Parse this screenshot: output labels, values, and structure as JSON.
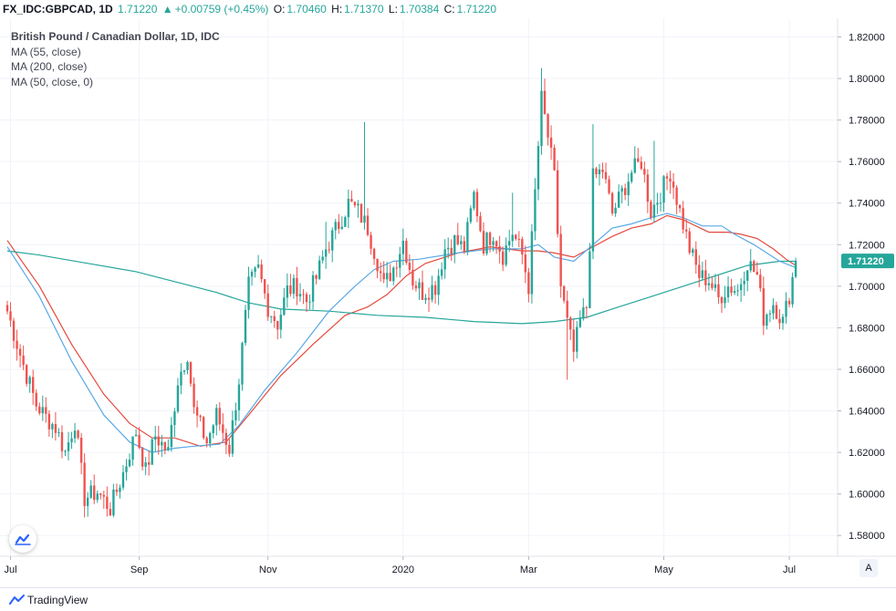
{
  "header": {
    "symbol": "FX_IDC:GBPCAD, 1D",
    "last": "1.71220",
    "change": "+0.00759 (+0.45%)",
    "open_label": "O:",
    "open": "1.70460",
    "high_label": "H:",
    "high": "1.71370",
    "low_label": "L:",
    "low": "1.70384",
    "close_label": "C:",
    "close": "1.71220"
  },
  "legend": {
    "title": "British Pound / Canadian Dollar, 1D, IDC",
    "ma1": "MA (55, close)",
    "ma2": "MA (200, close)",
    "ma3": "MA (50, close, 0)"
  },
  "price_tag": "1.71220",
  "footer": {
    "brand": "TradingView",
    "corner_button": "A"
  },
  "colors": {
    "up": "#26a69a",
    "down": "#ef5350",
    "ma55": "#e5493d",
    "ma200": "#26a69a",
    "ma50": "#5aa9e6",
    "grid": "#f0f3fa",
    "axis_text": "#131722",
    "price_tag_bg": "#26a69a"
  },
  "chart_data": {
    "type": "candlestick",
    "title": "British Pound / Canadian Dollar, 1D, IDC",
    "ylim": [
      1.57,
      1.829
    ],
    "y_ticks": [
      "1.82000",
      "1.80000",
      "1.78000",
      "1.76000",
      "1.74000",
      "1.72000",
      "1.70000",
      "1.68000",
      "1.66000",
      "1.64000",
      "1.62000",
      "1.60000",
      "1.58000"
    ],
    "x_labels": [
      {
        "label": "Jul",
        "i": 1
      },
      {
        "label": "Sep",
        "i": 41
      },
      {
        "label": "Nov",
        "i": 81
      },
      {
        "label": "2020",
        "i": 123
      },
      {
        "label": "Mar",
        "i": 162
      },
      {
        "label": "May",
        "i": 204
      },
      {
        "label": "Jul",
        "i": 243
      }
    ],
    "bars": 246,
    "anchors": [
      [
        0,
        1.688
      ],
      [
        5,
        1.662
      ],
      [
        9,
        1.643
      ],
      [
        12,
        1.637
      ],
      [
        15,
        1.632
      ],
      [
        18,
        1.62
      ],
      [
        21,
        1.635
      ],
      [
        24,
        1.598
      ],
      [
        28,
        1.601
      ],
      [
        32,
        1.593
      ],
      [
        36,
        1.61
      ],
      [
        40,
        1.63
      ],
      [
        43,
        1.611
      ],
      [
        46,
        1.628
      ],
      [
        50,
        1.62
      ],
      [
        53,
        1.655
      ],
      [
        56,
        1.668
      ],
      [
        58,
        1.64
      ],
      [
        62,
        1.625
      ],
      [
        65,
        1.638
      ],
      [
        69,
        1.622
      ],
      [
        72,
        1.655
      ],
      [
        75,
        1.7
      ],
      [
        78,
        1.708
      ],
      [
        81,
        1.69
      ],
      [
        84,
        1.682
      ],
      [
        87,
        1.698
      ],
      [
        90,
        1.7
      ],
      [
        93,
        1.693
      ],
      [
        96,
        1.704
      ],
      [
        99,
        1.718
      ],
      [
        103,
        1.73
      ],
      [
        106,
        1.74
      ],
      [
        109,
        1.736
      ],
      [
        112,
        1.728
      ],
      [
        115,
        1.712
      ],
      [
        117,
        1.7
      ],
      [
        120,
        1.709
      ],
      [
        123,
        1.722
      ],
      [
        126,
        1.703
      ],
      [
        129,
        1.697
      ],
      [
        133,
        1.7
      ],
      [
        136,
        1.718
      ],
      [
        139,
        1.722
      ],
      [
        142,
        1.718
      ],
      [
        145,
        1.744
      ],
      [
        148,
        1.72
      ],
      [
        151,
        1.726
      ],
      [
        154,
        1.715
      ],
      [
        157,
        1.726
      ],
      [
        160,
        1.715
      ],
      [
        162,
        1.7
      ],
      [
        164,
        1.745
      ],
      [
        166,
        1.79
      ],
      [
        168,
        1.772
      ],
      [
        170,
        1.752
      ],
      [
        172,
        1.7
      ],
      [
        174,
        1.682
      ],
      [
        176,
        1.668
      ],
      [
        178,
        1.683
      ],
      [
        180,
        1.69
      ],
      [
        182,
        1.752
      ],
      [
        185,
        1.756
      ],
      [
        188,
        1.735
      ],
      [
        191,
        1.745
      ],
      [
        194,
        1.755
      ],
      [
        197,
        1.76
      ],
      [
        200,
        1.736
      ],
      [
        203,
        1.745
      ],
      [
        206,
        1.755
      ],
      [
        209,
        1.736
      ],
      [
        212,
        1.718
      ],
      [
        215,
        1.705
      ],
      [
        218,
        1.703
      ],
      [
        221,
        1.694
      ],
      [
        224,
        1.7
      ],
      [
        227,
        1.698
      ],
      [
        230,
        1.712
      ],
      [
        233,
        1.705
      ],
      [
        235,
        1.685
      ],
      [
        238,
        1.692
      ],
      [
        241,
        1.683
      ],
      [
        243,
        1.696
      ],
      [
        245,
        1.712
      ]
    ],
    "last": {
      "open": 1.7046,
      "high": 1.7137,
      "low": 1.70384,
      "close": 1.7122
    },
    "spikes": [
      [
        111,
        1.779
      ],
      [
        166,
        1.805
      ],
      [
        174,
        1.655
      ],
      [
        182,
        1.778
      ],
      [
        201,
        1.77
      ],
      [
        157,
        1.745
      ],
      [
        99,
        1.731
      ]
    ],
    "series": [
      {
        "name": "MA (55, close)",
        "color": "#e5493d",
        "points": [
          [
            0,
            1.722
          ],
          [
            10,
            1.7
          ],
          [
            20,
            1.672
          ],
          [
            30,
            1.648
          ],
          [
            38,
            1.634
          ],
          [
            45,
            1.627
          ],
          [
            52,
            1.627
          ],
          [
            60,
            1.623
          ],
          [
            68,
            1.625
          ],
          [
            75,
            1.638
          ],
          [
            85,
            1.657
          ],
          [
            95,
            1.672
          ],
          [
            105,
            1.686
          ],
          [
            112,
            1.69
          ],
          [
            118,
            1.696
          ],
          [
            124,
            1.705
          ],
          [
            130,
            1.711
          ],
          [
            140,
            1.716
          ],
          [
            150,
            1.719
          ],
          [
            160,
            1.717
          ],
          [
            165,
            1.717
          ],
          [
            170,
            1.716
          ],
          [
            176,
            1.714
          ],
          [
            182,
            1.719
          ],
          [
            188,
            1.724
          ],
          [
            194,
            1.728
          ],
          [
            200,
            1.73
          ],
          [
            205,
            1.734
          ],
          [
            210,
            1.732
          ],
          [
            218,
            1.726
          ],
          [
            224,
            1.726
          ],
          [
            228,
            1.725
          ],
          [
            233,
            1.723
          ],
          [
            238,
            1.718
          ],
          [
            242,
            1.713
          ],
          [
            245,
            1.71
          ]
        ]
      },
      {
        "name": "MA (200, close)",
        "color": "#26a69a",
        "points": [
          [
            0,
            1.717
          ],
          [
            10,
            1.715
          ],
          [
            25,
            1.711
          ],
          [
            40,
            1.707
          ],
          [
            55,
            1.701
          ],
          [
            65,
            1.697
          ],
          [
            75,
            1.692
          ],
          [
            85,
            1.689
          ],
          [
            100,
            1.688
          ],
          [
            115,
            1.686
          ],
          [
            130,
            1.685
          ],
          [
            145,
            1.683
          ],
          [
            160,
            1.682
          ],
          [
            170,
            1.683
          ],
          [
            180,
            1.685
          ],
          [
            190,
            1.69
          ],
          [
            200,
            1.695
          ],
          [
            210,
            1.7
          ],
          [
            220,
            1.705
          ],
          [
            230,
            1.71
          ],
          [
            240,
            1.712
          ],
          [
            245,
            1.712
          ]
        ]
      },
      {
        "name": "MA (50, close, 0)",
        "color": "#5aa9e6",
        "points": [
          [
            0,
            1.719
          ],
          [
            10,
            1.695
          ],
          [
            20,
            1.664
          ],
          [
            30,
            1.638
          ],
          [
            38,
            1.625
          ],
          [
            45,
            1.62
          ],
          [
            52,
            1.622
          ],
          [
            58,
            1.623
          ],
          [
            66,
            1.624
          ],
          [
            72,
            1.633
          ],
          [
            80,
            1.65
          ],
          [
            90,
            1.668
          ],
          [
            100,
            1.688
          ],
          [
            108,
            1.7
          ],
          [
            114,
            1.708
          ],
          [
            120,
            1.712
          ],
          [
            128,
            1.713
          ],
          [
            140,
            1.716
          ],
          [
            150,
            1.718
          ],
          [
            160,
            1.718
          ],
          [
            165,
            1.72
          ],
          [
            170,
            1.714
          ],
          [
            176,
            1.712
          ],
          [
            182,
            1.72
          ],
          [
            188,
            1.728
          ],
          [
            194,
            1.73
          ],
          [
            200,
            1.733
          ],
          [
            205,
            1.735
          ],
          [
            210,
            1.733
          ],
          [
            216,
            1.729
          ],
          [
            222,
            1.729
          ],
          [
            226,
            1.725
          ],
          [
            232,
            1.72
          ],
          [
            236,
            1.716
          ],
          [
            240,
            1.712
          ],
          [
            245,
            1.709
          ]
        ]
      }
    ]
  }
}
